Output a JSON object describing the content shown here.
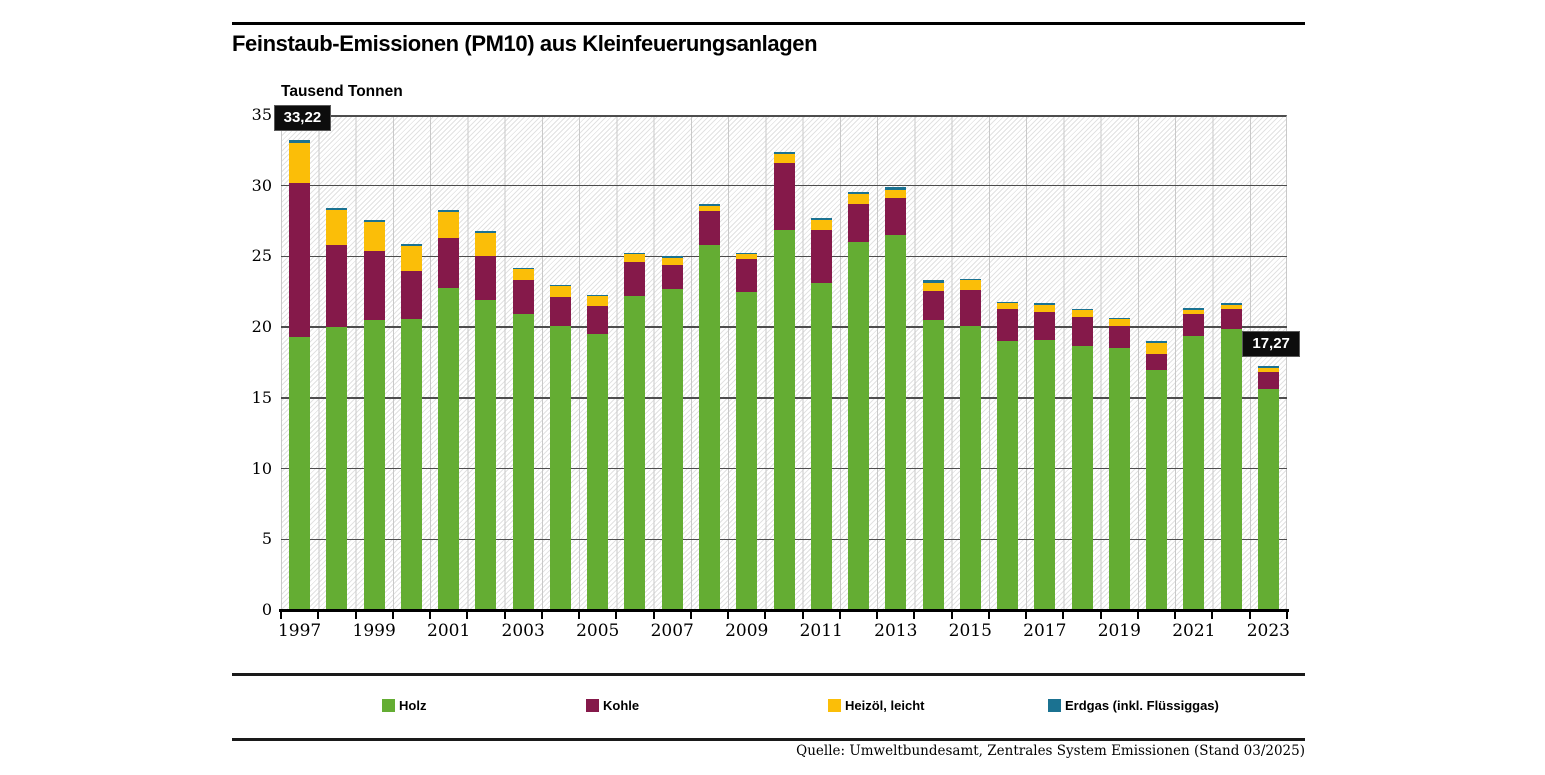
{
  "page": {
    "title": "Feinstaub-Emissionen (PM10) aus Kleinfeuerungsanlagen",
    "unit_label": "Tausend Tonnen",
    "source": "Quelle: Umweltbundesamt, Zentrales System Emissionen (Stand 03/2025)"
  },
  "chart_data": {
    "type": "bar",
    "stacked": true,
    "title": "Feinstaub-Emissionen (PM10) aus Kleinfeuerungsanlagen",
    "ylabel": "Tausend Tonnen",
    "ylim": [
      0,
      35
    ],
    "yticks": [
      0,
      5,
      10,
      15,
      20,
      25,
      30,
      35
    ],
    "grid": "horizontal",
    "plot_background": "diagonal-hatch",
    "legend_position": "bottom",
    "categories": [
      "1997",
      "1998",
      "1999",
      "2000",
      "2001",
      "2002",
      "2003",
      "2004",
      "2005",
      "2006",
      "2007",
      "2008",
      "2009",
      "2010",
      "2011",
      "2012",
      "2013",
      "2014",
      "2015",
      "2016",
      "2017",
      "2018",
      "2019",
      "2020",
      "2021",
      "2022",
      "2023"
    ],
    "xtick_labels": [
      "1997",
      "1999",
      "2001",
      "2003",
      "2005",
      "2007",
      "2009",
      "2011",
      "2013",
      "2015",
      "2017",
      "2019",
      "2021",
      "2023"
    ],
    "series": [
      {
        "name": "Holz",
        "color": "#64ad33",
        "values": [
          19.3,
          20.0,
          20.5,
          20.6,
          22.8,
          21.9,
          20.9,
          20.1,
          19.5,
          22.2,
          22.7,
          25.8,
          22.5,
          26.9,
          23.1,
          26.0,
          26.5,
          20.5,
          20.1,
          19.0,
          19.1,
          18.7,
          18.5,
          17.0,
          19.4,
          19.9,
          15.65
        ]
      },
      {
        "name": "Kohle",
        "color": "#85194a",
        "values": [
          10.9,
          5.8,
          4.9,
          3.35,
          3.5,
          3.15,
          2.4,
          2.05,
          2.0,
          2.4,
          1.7,
          2.4,
          2.3,
          4.7,
          3.8,
          2.7,
          2.6,
          2.05,
          2.5,
          2.3,
          2.0,
          2.0,
          1.55,
          1.1,
          1.5,
          1.35,
          1.15
        ]
      },
      {
        "name": "Heizöl, leicht",
        "color": "#fbbe08",
        "values": [
          2.85,
          2.45,
          2.05,
          1.8,
          1.85,
          1.6,
          0.8,
          0.75,
          0.7,
          0.55,
          0.5,
          0.4,
          0.35,
          0.65,
          0.65,
          0.7,
          0.6,
          0.55,
          0.7,
          0.4,
          0.5,
          0.5,
          0.5,
          0.8,
          0.3,
          0.35,
          0.31
        ]
      },
      {
        "name": "Erdgas (inkl. Flüssiggas)",
        "color": "#1b7291",
        "values": [
          0.17,
          0.15,
          0.15,
          0.15,
          0.15,
          0.12,
          0.1,
          0.1,
          0.1,
          0.1,
          0.1,
          0.1,
          0.1,
          0.15,
          0.15,
          0.15,
          0.2,
          0.2,
          0.1,
          0.1,
          0.1,
          0.1,
          0.1,
          0.1,
          0.15,
          0.1,
          0.16
        ]
      }
    ],
    "annotations": [
      {
        "category": "1997",
        "label": "33,22"
      },
      {
        "category": "2023",
        "label": "17,27"
      }
    ],
    "axis_color": "#000000",
    "gridline_color": "#4d4d4d"
  }
}
